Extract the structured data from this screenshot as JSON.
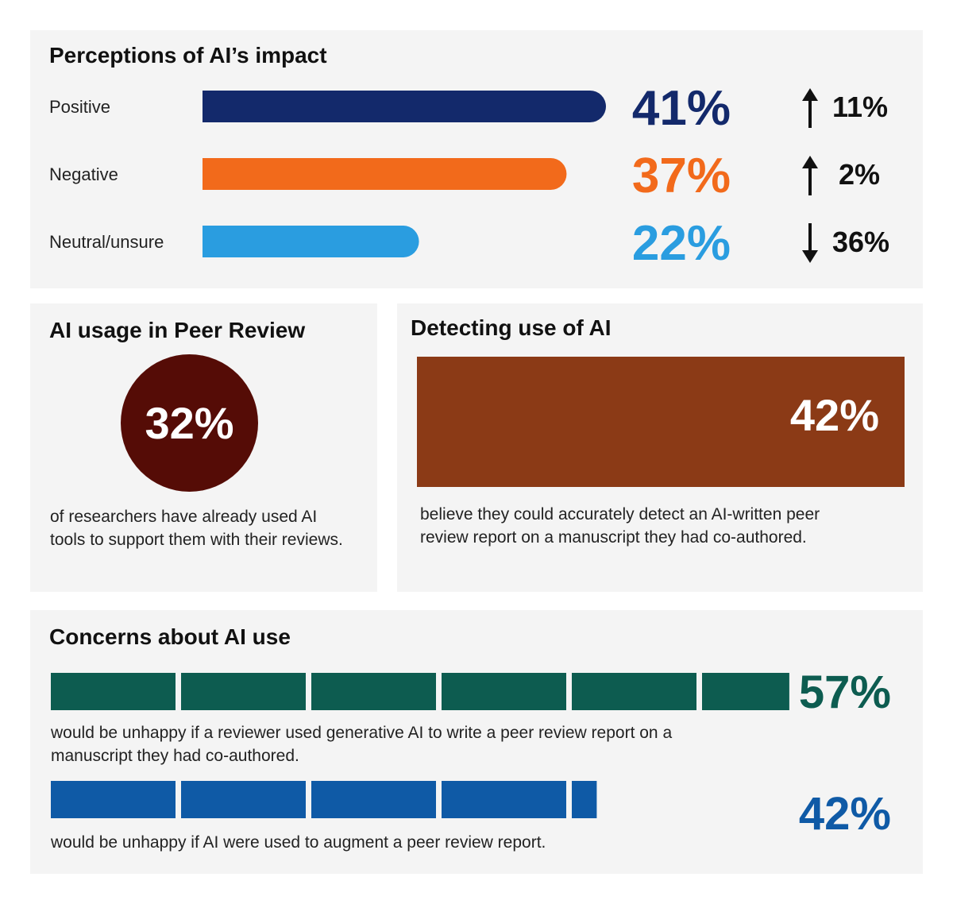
{
  "perceptions": {
    "title": "Perceptions of AI’s impact",
    "chart_data": {
      "type": "bar",
      "title": "Perceptions of AI’s impact",
      "categories": [
        "Positive",
        "Negative",
        "Neutral/unsure"
      ],
      "values": [
        41,
        37,
        22
      ],
      "value_labels": [
        "41%",
        "37%",
        "22%"
      ],
      "changes": [
        {
          "direction": "up",
          "label": "11%",
          "value": 11
        },
        {
          "direction": "up",
          "label": "2%",
          "value": 2
        },
        {
          "direction": "down",
          "label": "36%",
          "value": 36
        }
      ],
      "colors": [
        "#13296b",
        "#f26a1b",
        "#2a9de0"
      ],
      "xlim": [
        0,
        41
      ]
    }
  },
  "usage": {
    "title": "AI usage in Peer Review",
    "value": "32%",
    "description": "of researchers have already used AI tools to support them with their reviews.",
    "color": "#550c06"
  },
  "detecting": {
    "title": "Detecting use of AI",
    "value": "42%",
    "description": "believe they could accurately detect an AI-written peer review report on a manuscript they had co-authored.",
    "color": "#8b3a16"
  },
  "concerns": {
    "title": "Concerns about AI use",
    "chart_data": {
      "type": "bar",
      "title": "Concerns about AI use",
      "segment_unit": 10,
      "series": [
        {
          "name": "would be unhappy if a reviewer used generative AI to write a peer review report on a manuscript they had co-authored.",
          "value": 57,
          "label": "57%",
          "color": "#0d5c50"
        },
        {
          "name": "would be unhappy if AI were used to augment a peer review report.",
          "value": 42,
          "label": "42%",
          "color": "#0f5aa6"
        }
      ]
    },
    "items": [
      {
        "label": "57%",
        "description": "would be unhappy if a reviewer used generative AI to write a peer review report on a manuscript they had co-authored."
      },
      {
        "label": "42%",
        "description": "would be unhappy if AI were used to augment a peer review report."
      }
    ]
  }
}
